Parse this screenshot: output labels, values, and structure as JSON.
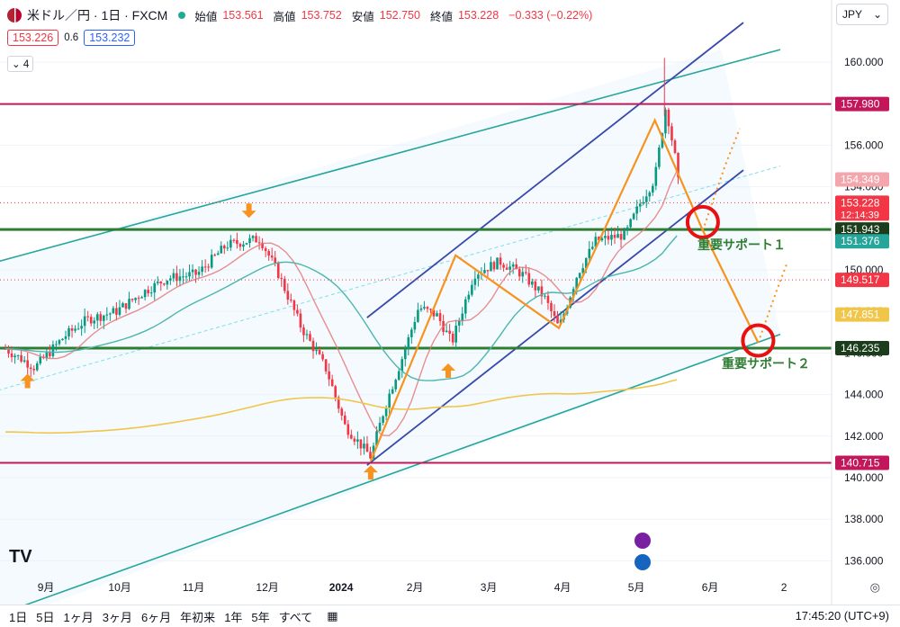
{
  "header": {
    "symbol": "米ドル／円 · 1日 · FXCM",
    "open_label": "始値",
    "open": "153.561",
    "high_label": "高値",
    "high": "153.752",
    "low_label": "安値",
    "low": "152.750",
    "close_label": "終値",
    "close": "153.228",
    "change": "−0.333 (−0.22%)"
  },
  "quote": {
    "bid": "153.226",
    "spread": "0.6",
    "ask": "153.232"
  },
  "indicator_count": "4",
  "currency": "JPY",
  "annotations": {
    "support1": "重要サポート１",
    "support2": "重要サポート２"
  },
  "toolbar": {
    "ranges": [
      "1日",
      "5日",
      "1ヶ月",
      "3ヶ月",
      "6ヶ月",
      "年初来",
      "1年",
      "5年",
      "すべて"
    ],
    "time": "17:45:20 (UTC+9)"
  },
  "colors": {
    "up": "#089981",
    "down": "#f23645",
    "resistance": "#c2185b",
    "support": "#2e7d32",
    "channel": "#3949ab",
    "pattern": "#f7931e",
    "trend": "#26a69a"
  },
  "chart_data": {
    "type": "candlestick",
    "y_ticks": [
      136.0,
      138.0,
      140.0,
      142.0,
      144.0,
      146.0,
      148.0,
      150.0,
      152.0,
      154.0,
      156.0,
      158.0,
      160.0
    ],
    "x_ticks": [
      "9月",
      "10月",
      "11月",
      "12月",
      "2024",
      "2月",
      "3月",
      "4月",
      "5月",
      "6月",
      "2"
    ],
    "ylim": [
      135.5,
      162.0
    ],
    "price_labels": [
      {
        "value": 157.98,
        "text": "157.980",
        "color": "#c2185b"
      },
      {
        "value": 154.349,
        "text": "154.349",
        "color": "#f4a6ad"
      },
      {
        "value": 153.228,
        "text": "153.228",
        "sub": "12:14:39",
        "color": "#f23645"
      },
      {
        "value": 151.943,
        "text": "151.943",
        "color": "#1b3d1b"
      },
      {
        "value": 151.376,
        "text": "151.376",
        "color": "#26a69a"
      },
      {
        "value": 149.517,
        "text": "149.517",
        "color": "#f23645"
      },
      {
        "value": 147.851,
        "text": "147.851",
        "color": "#f0c64a"
      },
      {
        "value": 146.235,
        "text": "146.235",
        "color": "#1b3d1b"
      },
      {
        "value": 140.715,
        "text": "140.715",
        "color": "#c2185b"
      }
    ],
    "horizontal_lines": [
      {
        "value": 157.98,
        "color": "#c2185b"
      },
      {
        "value": 151.943,
        "color": "#2e7d32"
      },
      {
        "value": 146.235,
        "color": "#2e7d32"
      },
      {
        "value": 140.715,
        "color": "#c2185b"
      }
    ],
    "close_path": [
      {
        "month": 8.0,
        "price": 146.2
      },
      {
        "month": 8.4,
        "price": 145.3
      },
      {
        "month": 8.8,
        "price": 146.8
      },
      {
        "month": 9.1,
        "price": 147.6
      },
      {
        "month": 9.5,
        "price": 148.0
      },
      {
        "month": 9.9,
        "price": 149.0
      },
      {
        "month": 10.2,
        "price": 149.6
      },
      {
        "month": 10.6,
        "price": 149.8
      },
      {
        "month": 11.0,
        "price": 151.2
      },
      {
        "month": 11.45,
        "price": 151.5
      },
      {
        "month": 11.7,
        "price": 149.8
      },
      {
        "month": 12.0,
        "price": 147.3
      },
      {
        "month": 12.35,
        "price": 145.2
      },
      {
        "month": 12.6,
        "price": 142.5
      },
      {
        "month": 12.95,
        "price": 141.0
      },
      {
        "month": 13.15,
        "price": 143.5
      },
      {
        "month": 13.4,
        "price": 146.0
      },
      {
        "month": 13.6,
        "price": 148.2
      },
      {
        "month": 13.85,
        "price": 147.8
      },
      {
        "month": 14.05,
        "price": 146.5
      },
      {
        "month": 14.35,
        "price": 149.8
      },
      {
        "month": 14.7,
        "price": 150.4
      },
      {
        "month": 15.0,
        "price": 149.8
      },
      {
        "month": 15.3,
        "price": 148.7
      },
      {
        "month": 15.5,
        "price": 147.2
      },
      {
        "month": 15.75,
        "price": 149.8
      },
      {
        "month": 16.0,
        "price": 151.4
      },
      {
        "month": 16.4,
        "price": 151.7
      },
      {
        "month": 16.6,
        "price": 153.2
      },
      {
        "month": 16.8,
        "price": 154.4
      },
      {
        "month": 16.95,
        "price": 157.9
      },
      {
        "month": 17.08,
        "price": 155.3
      },
      {
        "month": 17.15,
        "price": 153.2
      }
    ]
  }
}
